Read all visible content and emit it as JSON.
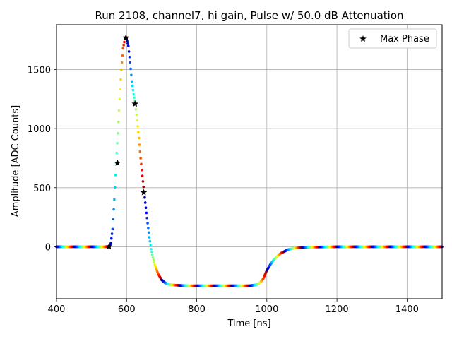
{
  "chart_data": {
    "type": "scatter",
    "title": "Run 2108, channel7, hi gain, Pulse w/ 50.0 dB Attenuation",
    "xlabel": "Time [ns]",
    "ylabel": "Amplitude [ADC Counts]",
    "xlim": [
      400,
      1500
    ],
    "ylim": [
      -440,
      1880
    ],
    "xticks": [
      400,
      600,
      800,
      1000,
      1200,
      1400
    ],
    "yticks": [
      0,
      500,
      1000,
      1500
    ],
    "grid": true,
    "legend_position": "top-right",
    "pulse_curve": {
      "description_values": {
        "baseline": 0,
        "peak_time": 598,
        "peak_amplitude": 1770,
        "undershoot": -330,
        "recovery_time": 1000
      },
      "colormap": "jet",
      "series": [
        {
          "x": [
            400,
            450,
            500,
            540,
            550,
            555,
            560,
            565,
            570,
            575,
            580,
            585,
            590,
            595,
            598,
            600,
            605,
            610,
            615,
            620,
            625,
            630,
            635,
            640,
            645,
            650,
            655,
            660,
            665,
            670,
            675,
            680,
            690,
            700,
            710,
            720,
            740,
            760,
            780,
            800,
            850,
            900,
            950,
            970,
            980,
            990,
            1000,
            1010,
            1020,
            1030,
            1040,
            1050,
            1060,
            1080,
            1100,
            1150,
            1200,
            1300,
            1400,
            1500
          ],
          "y": [
            0,
            0,
            0,
            0,
            2,
            30,
            150,
            400,
            710,
            960,
            1250,
            1500,
            1680,
            1760,
            1770,
            1760,
            1700,
            1560,
            1400,
            1290,
            1210,
            1070,
            920,
            750,
            600,
            460,
            330,
            200,
            80,
            -20,
            -90,
            -150,
            -230,
            -280,
            -305,
            -318,
            -325,
            -328,
            -330,
            -330,
            -330,
            -330,
            -330,
            -322,
            -305,
            -270,
            -200,
            -150,
            -110,
            -80,
            -55,
            -40,
            -25,
            -10,
            -5,
            -2,
            0,
            0,
            0,
            0
          ]
        }
      ]
    },
    "series": [
      {
        "name": "Max Phase",
        "marker": "star",
        "color": "#000000",
        "x": [
          550,
          574,
          598,
          624,
          649
        ],
        "y": [
          2,
          710,
          1770,
          1210,
          460
        ]
      }
    ]
  }
}
